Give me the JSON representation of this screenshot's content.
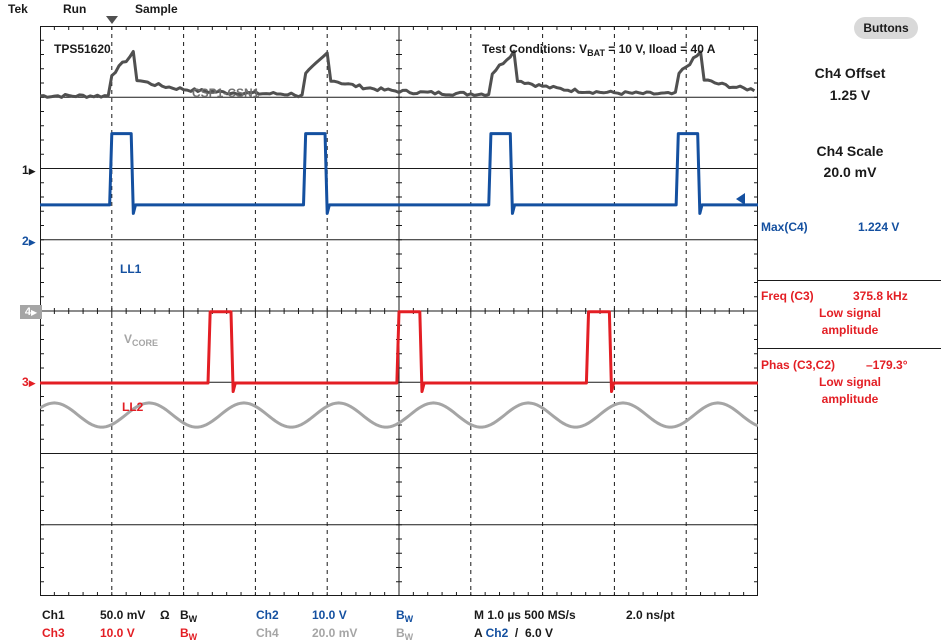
{
  "header": {
    "brand": "Tek",
    "state": "Run",
    "mode": "Sample"
  },
  "screen": {
    "device": "TPS51620",
    "test_conditions_prefix": "Test Conditions: V",
    "test_conditions_sub": "BAT",
    "test_conditions_suffix": " = 10 V, Iload = 40 A"
  },
  "labels": {
    "csp": "CSP1-CSN1",
    "ll1": "LL1",
    "vcore_main": "V",
    "vcore_sub": "CORE",
    "ll2": "LL2"
  },
  "markers": {
    "m1": "1",
    "m2": "2",
    "m4": "4",
    "m3": "3"
  },
  "side_panel": {
    "buttons_label": "Buttons",
    "offset_title": "Ch4 Offset",
    "offset_value": "1.25 V",
    "scale_title": "Ch4 Scale",
    "scale_value": "20.0 mV",
    "max_label": "Max(C4)",
    "max_value": "1.224 V",
    "freq_label": "Freq (C3)",
    "freq_value": "375.8 kHz",
    "freq_note1": "Low signal",
    "freq_note2": "amplitude",
    "phas_label": "Phas (C3,C2)",
    "phas_value": "–179.3°",
    "phas_note1": "Low signal",
    "phas_note2": "amplitude"
  },
  "footer": {
    "ch1": "Ch1",
    "ch1_scale": "50.0 mV",
    "ohm": "Ω",
    "bw1_main": "B",
    "bw1_sub": "W",
    "ch2": "Ch2",
    "ch2_scale": "10.0 V",
    "bw2_main": "B",
    "bw2_sub": "W",
    "timebase": "M 1.0 µs 500 MS/s",
    "resolution": "2.0 ns/pt",
    "ch3": "Ch3",
    "ch3_scale": "10.0 V",
    "bw3_main": "B",
    "bw3_sub": "W",
    "ch4": "Ch4",
    "ch4_scale": "20.0 mV",
    "bw4_main": "B",
    "bw4_sub": "W",
    "trigger_prefix": "A",
    "trigger_ch": "Ch2",
    "trigger_slope": "/",
    "trigger_level": "6.0 V"
  },
  "chart_data": {
    "type": "line",
    "title": "",
    "xlabel": "",
    "ylabel": "",
    "grid": true,
    "x_unit": "µs",
    "x_range": [
      0,
      10
    ],
    "period_us": 2.66,
    "colors": {
      "csp": "#505050",
      "ll1": "#1450a0",
      "ll2": "#e31e24",
      "vcore": "#a5a5a5",
      "grid": "#1a1a1a"
    },
    "series": [
      {
        "name": "CSP1-CSN1",
        "kind": "ramp",
        "edges_us": [
          0.97,
          3.67,
          6.25,
          8.86
        ],
        "base_div": 4.05,
        "peak_div": 4.65
      },
      {
        "name": "LL1",
        "kind": "pulse",
        "rise_us": [
          0.97,
          3.67,
          6.25,
          8.86
        ],
        "width_us": 0.3,
        "low_div": 2.5,
        "high_div": 3.5
      },
      {
        "name": "LL2",
        "kind": "pulse",
        "rise_us": [
          2.34,
          4.97,
          7.61
        ],
        "width_us": 0.32,
        "low_div": 0.0,
        "high_div": 1.0
      },
      {
        "name": "VCORE",
        "kind": "sine",
        "period_us": 1.32,
        "phase_us": 0.2,
        "center_div": -0.45,
        "amp_div": 0.17
      }
    ]
  }
}
